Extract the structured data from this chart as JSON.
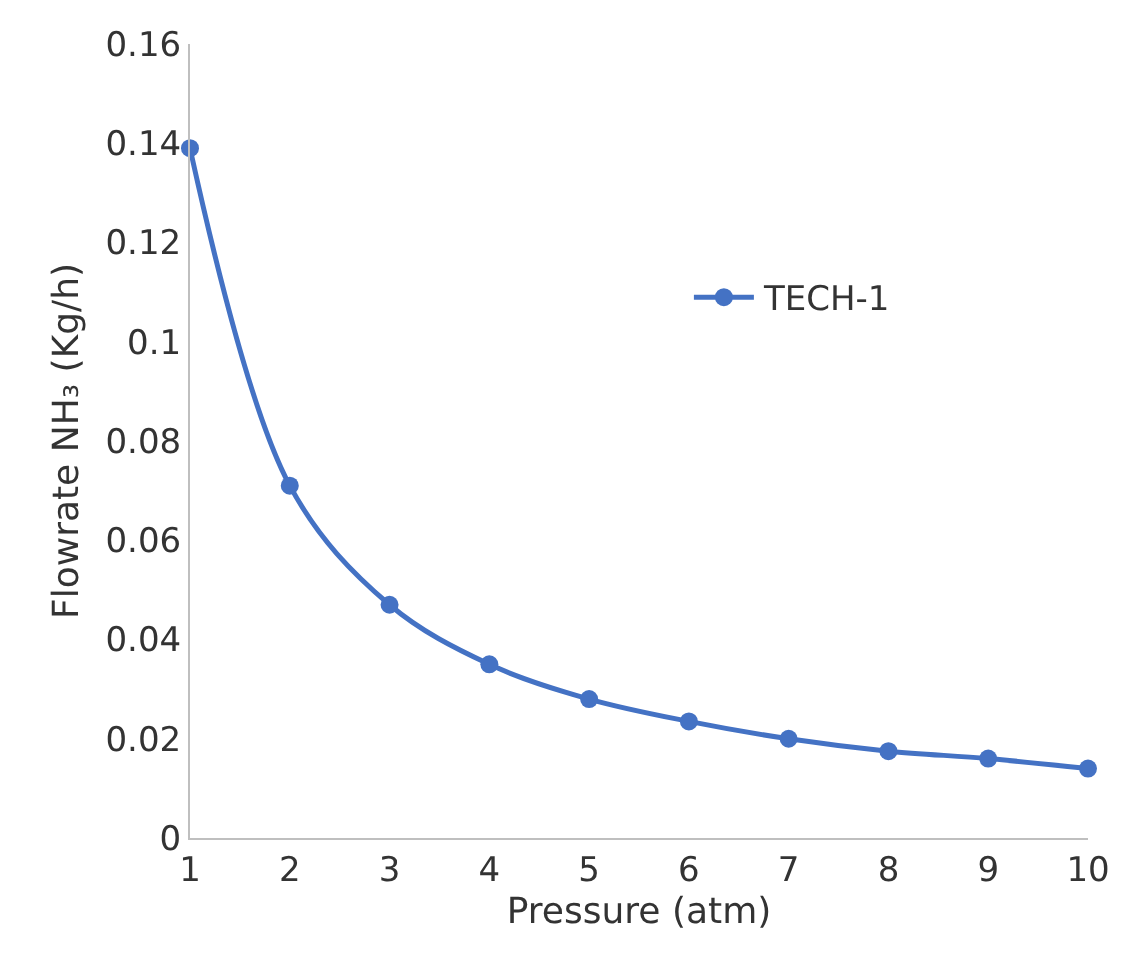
{
  "chart_data": {
    "type": "line",
    "xlabel": "Pressure (atm)",
    "ylabel": "Flowrate NH₃ (Kg/h)",
    "x": [
      1,
      2,
      3,
      4,
      5,
      6,
      7,
      8,
      9,
      10
    ],
    "series": [
      {
        "name": "TECH-1",
        "color": "#4472c4",
        "values": [
          0.139,
          0.071,
          0.047,
          0.035,
          0.028,
          0.0235,
          0.02,
          0.0175,
          0.016,
          0.014
        ]
      }
    ],
    "xlim": [
      1,
      10
    ],
    "xticks": [
      1,
      2,
      3,
      4,
      5,
      6,
      7,
      8,
      9,
      10
    ],
    "ylim": [
      0,
      0.16
    ],
    "yticks": [
      0,
      0.02,
      0.04,
      0.06,
      0.08,
      0.1,
      0.12,
      0.14,
      0.16
    ],
    "legend": "right",
    "marker": "circle",
    "line_style": "solid"
  }
}
